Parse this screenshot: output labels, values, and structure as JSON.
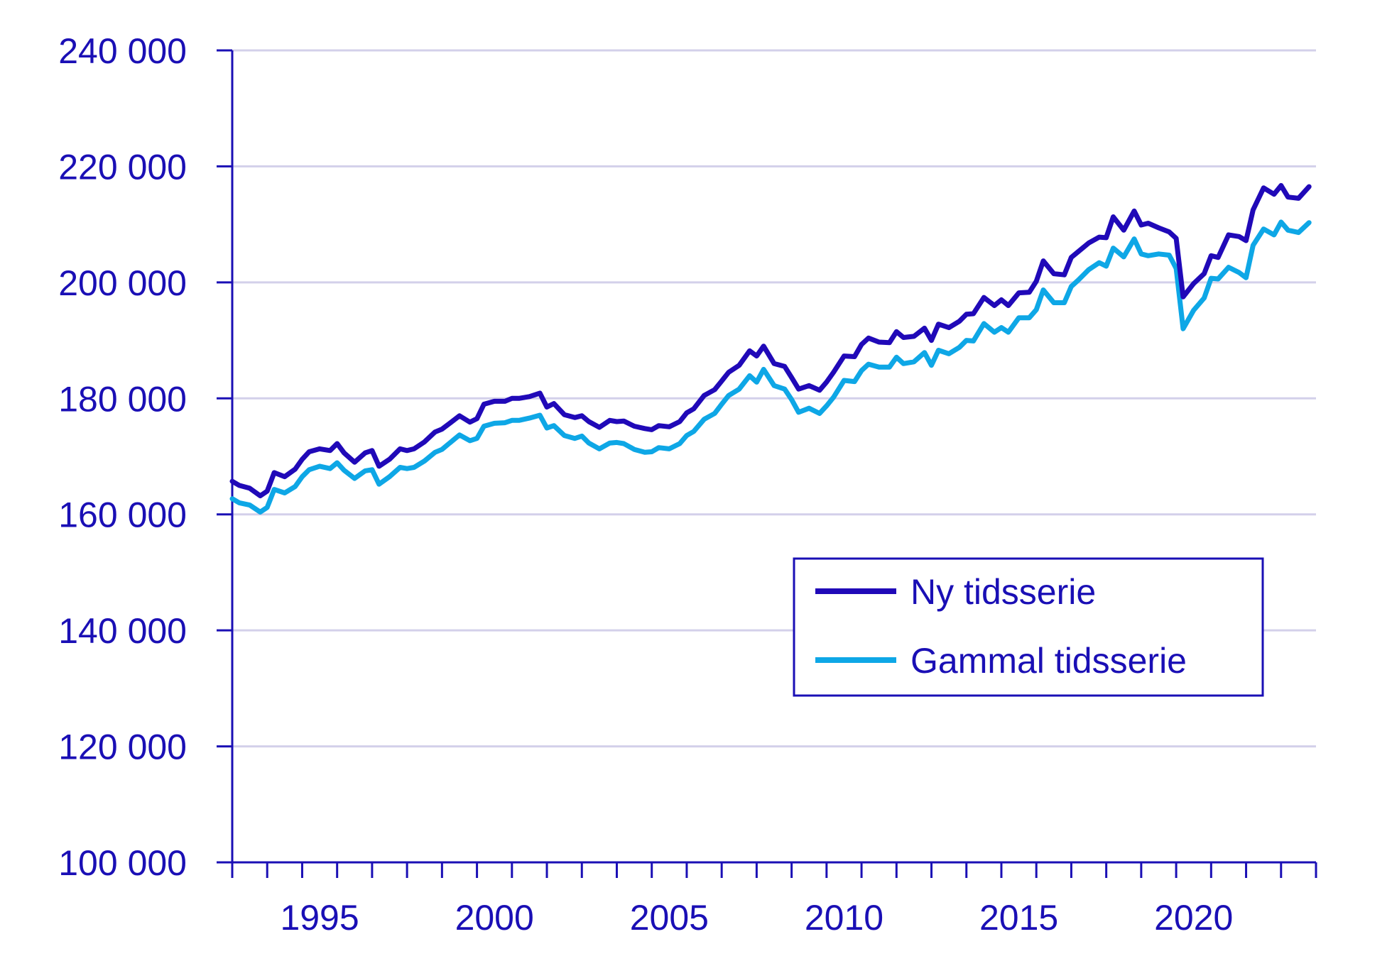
{
  "chart_data": {
    "type": "line",
    "title": "",
    "xlabel": "",
    "ylabel": "",
    "xlim": [
      1993.0,
      2024.0
    ],
    "ylim": [
      100000,
      240000
    ],
    "y_ticks": [
      100000,
      120000,
      140000,
      160000,
      180000,
      200000,
      220000,
      240000
    ],
    "y_tick_labels": [
      "100 000",
      "120 000",
      "140 000",
      "160 000",
      "180 000",
      "200 000",
      "220 000",
      "240 000"
    ],
    "x_tick_labels": [
      {
        "year": 1995,
        "label": "1995"
      },
      {
        "year": 2000,
        "label": "2000"
      },
      {
        "year": 2005,
        "label": "2005"
      },
      {
        "year": 2010,
        "label": "2010"
      },
      {
        "year": 2015,
        "label": "2015"
      },
      {
        "year": 2020,
        "label": "2020"
      }
    ],
    "grid": true,
    "legend": "inside-bottom-right",
    "series": [
      {
        "name": "Ny tidsserie",
        "color": "#2009b8",
        "points": [
          [
            1993.0,
            165700
          ],
          [
            1993.2,
            165000
          ],
          [
            1993.5,
            164500
          ],
          [
            1993.8,
            163200
          ],
          [
            1994.0,
            164000
          ],
          [
            1994.2,
            167200
          ],
          [
            1994.5,
            166500
          ],
          [
            1994.8,
            167800
          ],
          [
            1995.0,
            169500
          ],
          [
            1995.2,
            170800
          ],
          [
            1995.5,
            171300
          ],
          [
            1995.8,
            171000
          ],
          [
            1996.0,
            172200
          ],
          [
            1996.2,
            170600
          ],
          [
            1996.5,
            169000
          ],
          [
            1996.8,
            170600
          ],
          [
            1997.0,
            171000
          ],
          [
            1997.2,
            168300
          ],
          [
            1997.5,
            169500
          ],
          [
            1997.8,
            171300
          ],
          [
            1998.0,
            171000
          ],
          [
            1998.2,
            171300
          ],
          [
            1998.5,
            172500
          ],
          [
            1998.8,
            174200
          ],
          [
            1999.0,
            174700
          ],
          [
            1999.2,
            175600
          ],
          [
            1999.5,
            177000
          ],
          [
            1999.8,
            175900
          ],
          [
            2000.0,
            176500
          ],
          [
            2000.2,
            179000
          ],
          [
            2000.5,
            179500
          ],
          [
            2000.8,
            179500
          ],
          [
            2001.0,
            180000
          ],
          [
            2001.2,
            180000
          ],
          [
            2001.5,
            180300
          ],
          [
            2001.8,
            180900
          ],
          [
            2002.0,
            178500
          ],
          [
            2002.2,
            179100
          ],
          [
            2002.5,
            177200
          ],
          [
            2002.8,
            176700
          ],
          [
            2003.0,
            177000
          ],
          [
            2003.2,
            176000
          ],
          [
            2003.5,
            175000
          ],
          [
            2003.8,
            176200
          ],
          [
            2004.0,
            176000
          ],
          [
            2004.2,
            176100
          ],
          [
            2004.5,
            175200
          ],
          [
            2004.8,
            174800
          ],
          [
            2005.0,
            174600
          ],
          [
            2005.2,
            175300
          ],
          [
            2005.5,
            175100
          ],
          [
            2005.8,
            176000
          ],
          [
            2006.0,
            177500
          ],
          [
            2006.2,
            178200
          ],
          [
            2006.5,
            180500
          ],
          [
            2006.8,
            181500
          ],
          [
            2007.0,
            183000
          ],
          [
            2007.2,
            184500
          ],
          [
            2007.5,
            185700
          ],
          [
            2007.8,
            188200
          ],
          [
            2008.0,
            187300
          ],
          [
            2008.2,
            189000
          ],
          [
            2008.5,
            186000
          ],
          [
            2008.8,
            185500
          ],
          [
            2009.0,
            183600
          ],
          [
            2009.2,
            181600
          ],
          [
            2009.5,
            182200
          ],
          [
            2009.8,
            181400
          ],
          [
            2010.0,
            182800
          ],
          [
            2010.2,
            184500
          ],
          [
            2010.5,
            187300
          ],
          [
            2010.8,
            187200
          ],
          [
            2011.0,
            189300
          ],
          [
            2011.2,
            190400
          ],
          [
            2011.5,
            189700
          ],
          [
            2011.8,
            189600
          ],
          [
            2012.0,
            191500
          ],
          [
            2012.2,
            190500
          ],
          [
            2012.5,
            190700
          ],
          [
            2012.8,
            192100
          ],
          [
            2013.0,
            190000
          ],
          [
            2013.2,
            192800
          ],
          [
            2013.5,
            192200
          ],
          [
            2013.8,
            193300
          ],
          [
            2014.0,
            194500
          ],
          [
            2014.2,
            194600
          ],
          [
            2014.5,
            197400
          ],
          [
            2014.8,
            196000
          ],
          [
            2015.0,
            197000
          ],
          [
            2015.2,
            196000
          ],
          [
            2015.5,
            198200
          ],
          [
            2015.8,
            198300
          ],
          [
            2016.0,
            200200
          ],
          [
            2016.2,
            203700
          ],
          [
            2016.5,
            201500
          ],
          [
            2016.8,
            201300
          ],
          [
            2017.0,
            204300
          ],
          [
            2017.2,
            205300
          ],
          [
            2017.5,
            206800
          ],
          [
            2017.8,
            207800
          ],
          [
            2018.0,
            207700
          ],
          [
            2018.2,
            211300
          ],
          [
            2018.5,
            209000
          ],
          [
            2018.8,
            212300
          ],
          [
            2019.0,
            209900
          ],
          [
            2019.2,
            210200
          ],
          [
            2019.5,
            209400
          ],
          [
            2019.8,
            208700
          ],
          [
            2020.0,
            207600
          ],
          [
            2020.2,
            197500
          ],
          [
            2020.5,
            199800
          ],
          [
            2020.8,
            201500
          ],
          [
            2021.0,
            204600
          ],
          [
            2021.2,
            204300
          ],
          [
            2021.5,
            208200
          ],
          [
            2021.8,
            207900
          ],
          [
            2022.0,
            207200
          ],
          [
            2022.2,
            212500
          ],
          [
            2022.5,
            216300
          ],
          [
            2022.8,
            215200
          ],
          [
            2023.0,
            216700
          ],
          [
            2023.2,
            214700
          ],
          [
            2023.5,
            214500
          ],
          [
            2023.8,
            216500
          ]
        ]
      },
      {
        "name": "Gammal tidsserie",
        "color": "#0ea7e6",
        "points": [
          [
            1993.0,
            162700
          ],
          [
            1993.2,
            162000
          ],
          [
            1993.5,
            161600
          ],
          [
            1993.8,
            160400
          ],
          [
            1994.0,
            161200
          ],
          [
            1994.2,
            164300
          ],
          [
            1994.5,
            163700
          ],
          [
            1994.8,
            164800
          ],
          [
            1995.0,
            166500
          ],
          [
            1995.2,
            167700
          ],
          [
            1995.5,
            168300
          ],
          [
            1995.8,
            167900
          ],
          [
            1996.0,
            168900
          ],
          [
            1996.2,
            167600
          ],
          [
            1996.5,
            166200
          ],
          [
            1996.8,
            167500
          ],
          [
            1997.0,
            167700
          ],
          [
            1997.2,
            165200
          ],
          [
            1997.5,
            166500
          ],
          [
            1997.8,
            168100
          ],
          [
            1998.0,
            167900
          ],
          [
            1998.2,
            168100
          ],
          [
            1998.5,
            169200
          ],
          [
            1998.8,
            170700
          ],
          [
            1999.0,
            171200
          ],
          [
            1999.2,
            172200
          ],
          [
            1999.5,
            173700
          ],
          [
            1999.8,
            172700
          ],
          [
            2000.0,
            173100
          ],
          [
            2000.2,
            175200
          ],
          [
            2000.5,
            175700
          ],
          [
            2000.8,
            175800
          ],
          [
            2001.0,
            176200
          ],
          [
            2001.2,
            176200
          ],
          [
            2001.5,
            176600
          ],
          [
            2001.8,
            177100
          ],
          [
            2002.0,
            174900
          ],
          [
            2002.2,
            175300
          ],
          [
            2002.5,
            173600
          ],
          [
            2002.8,
            173100
          ],
          [
            2003.0,
            173500
          ],
          [
            2003.2,
            172300
          ],
          [
            2003.5,
            171300
          ],
          [
            2003.8,
            172300
          ],
          [
            2004.0,
            172400
          ],
          [
            2004.2,
            172200
          ],
          [
            2004.5,
            171200
          ],
          [
            2004.8,
            170700
          ],
          [
            2005.0,
            170800
          ],
          [
            2005.2,
            171500
          ],
          [
            2005.5,
            171300
          ],
          [
            2005.8,
            172200
          ],
          [
            2006.0,
            173600
          ],
          [
            2006.2,
            174300
          ],
          [
            2006.5,
            176400
          ],
          [
            2006.8,
            177400
          ],
          [
            2007.0,
            179000
          ],
          [
            2007.2,
            180500
          ],
          [
            2007.5,
            181600
          ],
          [
            2007.8,
            183900
          ],
          [
            2008.0,
            182800
          ],
          [
            2008.2,
            185000
          ],
          [
            2008.5,
            182200
          ],
          [
            2008.8,
            181600
          ],
          [
            2009.0,
            179800
          ],
          [
            2009.2,
            177600
          ],
          [
            2009.5,
            178300
          ],
          [
            2009.8,
            177400
          ],
          [
            2010.0,
            178700
          ],
          [
            2010.2,
            180200
          ],
          [
            2010.5,
            183100
          ],
          [
            2010.8,
            182900
          ],
          [
            2011.0,
            184800
          ],
          [
            2011.2,
            185900
          ],
          [
            2011.5,
            185400
          ],
          [
            2011.8,
            185400
          ],
          [
            2012.0,
            187100
          ],
          [
            2012.2,
            186000
          ],
          [
            2012.5,
            186300
          ],
          [
            2012.8,
            187900
          ],
          [
            2013.0,
            185700
          ],
          [
            2013.2,
            188300
          ],
          [
            2013.5,
            187700
          ],
          [
            2013.8,
            188800
          ],
          [
            2014.0,
            190000
          ],
          [
            2014.2,
            189900
          ],
          [
            2014.5,
            192900
          ],
          [
            2014.8,
            191400
          ],
          [
            2015.0,
            192200
          ],
          [
            2015.2,
            191400
          ],
          [
            2015.5,
            193900
          ],
          [
            2015.8,
            193900
          ],
          [
            2016.0,
            195300
          ],
          [
            2016.2,
            198700
          ],
          [
            2016.5,
            196500
          ],
          [
            2016.8,
            196500
          ],
          [
            2017.0,
            199300
          ],
          [
            2017.2,
            200400
          ],
          [
            2017.5,
            202200
          ],
          [
            2017.8,
            203400
          ],
          [
            2018.0,
            202800
          ],
          [
            2018.2,
            205900
          ],
          [
            2018.5,
            204400
          ],
          [
            2018.8,
            207500
          ],
          [
            2019.0,
            204900
          ],
          [
            2019.2,
            204600
          ],
          [
            2019.5,
            204900
          ],
          [
            2019.8,
            204700
          ],
          [
            2020.0,
            202400
          ],
          [
            2020.2,
            192000
          ],
          [
            2020.5,
            195200
          ],
          [
            2020.8,
            197300
          ],
          [
            2021.0,
            200700
          ],
          [
            2021.2,
            200600
          ],
          [
            2021.5,
            202600
          ],
          [
            2021.8,
            201700
          ],
          [
            2022.0,
            200800
          ],
          [
            2022.2,
            206400
          ],
          [
            2022.5,
            209200
          ],
          [
            2022.8,
            208200
          ],
          [
            2023.0,
            210400
          ],
          [
            2023.2,
            209000
          ],
          [
            2023.5,
            208600
          ],
          [
            2023.8,
            210300
          ]
        ]
      }
    ]
  }
}
